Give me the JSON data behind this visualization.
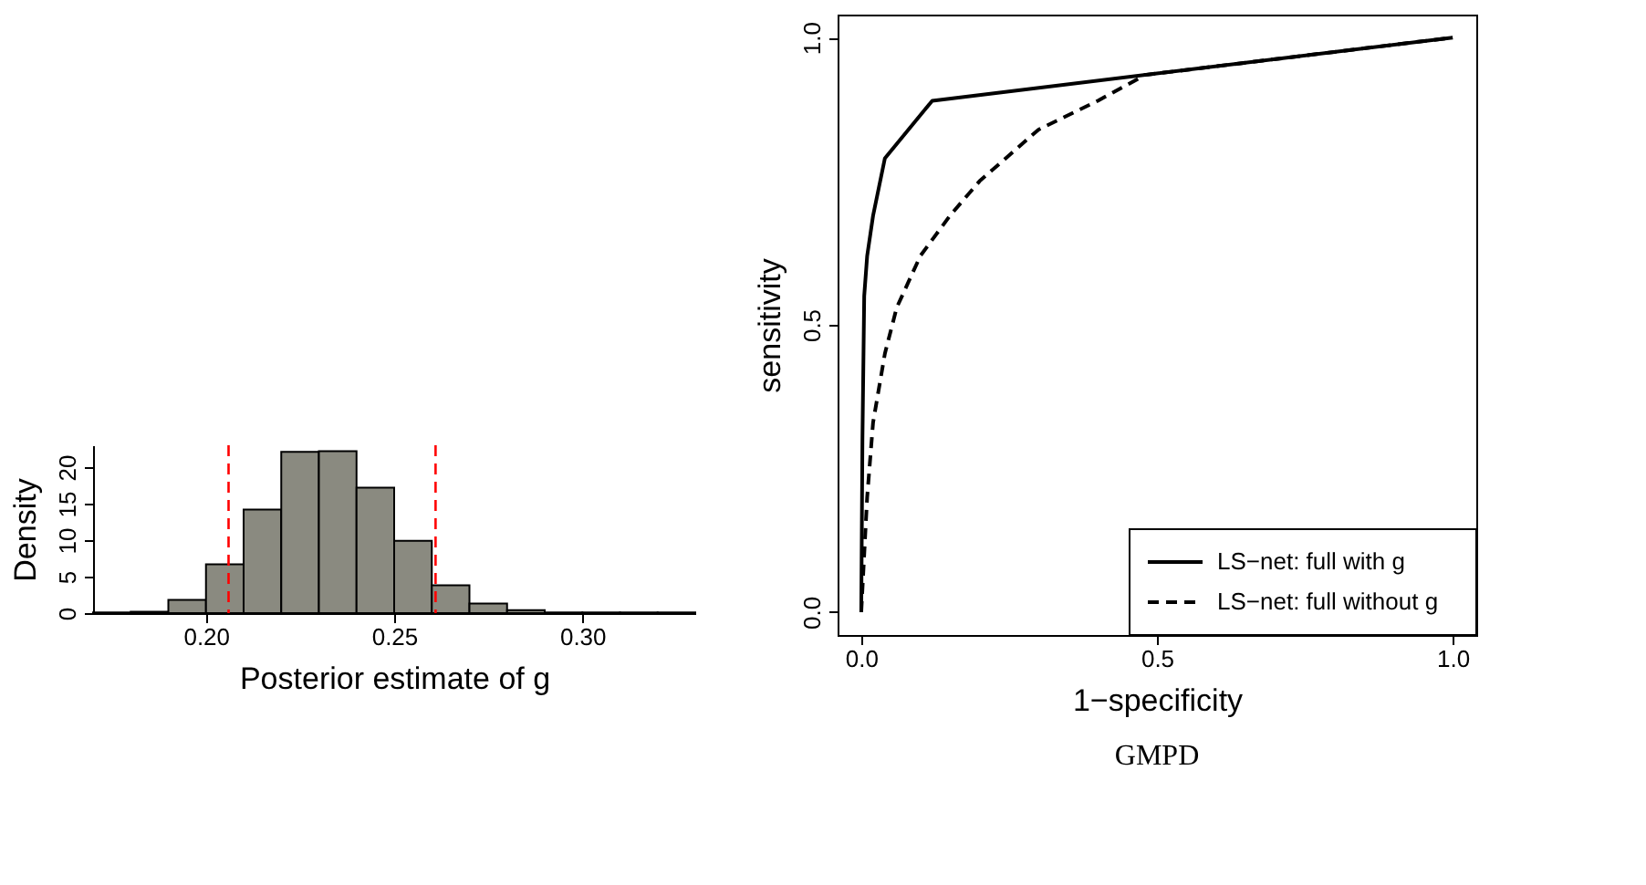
{
  "chart_data": [
    {
      "type": "histogram",
      "xlabel": "Posterior estimate of g",
      "ylabel": "Density",
      "color": "#8a8a80",
      "bins": [
        0.17,
        0.18,
        0.19,
        0.2,
        0.21,
        0.22,
        0.23,
        0.24,
        0.25,
        0.26,
        0.27,
        0.28,
        0.29,
        0.3,
        0.31,
        0.32,
        0.33
      ],
      "values": [
        0.1,
        0.2,
        1.8,
        6.7,
        14.2,
        22.1,
        22.2,
        17.2,
        9.9,
        3.8,
        1.3,
        0.4,
        0.1,
        0.1,
        0.1,
        0.1
      ],
      "xlim": [
        0.17,
        0.33
      ],
      "ylim": [
        0,
        23
      ],
      "xticks": [
        {
          "value": 0.2,
          "label": "0.20"
        },
        {
          "value": 0.25,
          "label": "0.25"
        },
        {
          "value": 0.3,
          "label": "0.30"
        }
      ],
      "yticks": [
        0,
        5,
        10,
        15,
        20
      ],
      "grid": false,
      "ref_lines": [
        {
          "axis": "x",
          "value": 0.206,
          "label": null,
          "color": "#ff0000",
          "line_style": "dashed"
        },
        {
          "axis": "x",
          "value": 0.261,
          "label": null,
          "color": "#ff0000",
          "line_style": "dashed"
        }
      ]
    },
    {
      "type": "line",
      "xlabel": "1−specificity",
      "ylabel": "sensitivity",
      "annotations": [
        "GMPD"
      ],
      "xlim": [
        -0.04,
        1.04
      ],
      "ylim": [
        -0.04,
        1.04
      ],
      "xticks": [
        {
          "value": 0,
          "label": "0.0"
        },
        {
          "value": 0.5,
          "label": "0.5"
        },
        {
          "value": 1,
          "label": "1.0"
        }
      ],
      "yticks": [
        {
          "value": 0,
          "label": "0.0"
        },
        {
          "value": 0.5,
          "label": "0.5"
        },
        {
          "value": 1,
          "label": "1.0"
        }
      ],
      "grid": false,
      "legend": "bottom right",
      "marker": "none",
      "series": [
        {
          "name": "LS−net:  full with g",
          "color": "#000000",
          "line_style": "solid",
          "x": [
            0,
            0.002,
            0.005,
            0.01,
            0.02,
            0.04,
            0.12,
            1
          ],
          "values": [
            0,
            0.3,
            0.55,
            0.62,
            0.69,
            0.79,
            0.89,
            1
          ]
        },
        {
          "name": "LS−net:  full without g",
          "color": "#000000",
          "line_style": "dashed",
          "x": [
            0,
            0.005,
            0.01,
            0.02,
            0.04,
            0.06,
            0.1,
            0.15,
            0.2,
            0.3,
            0.4,
            0.48,
            0.6,
            1
          ],
          "values": [
            0,
            0.1,
            0.2,
            0.33,
            0.45,
            0.53,
            0.62,
            0.69,
            0.75,
            0.84,
            0.89,
            0.935,
            0.95,
            1
          ]
        }
      ]
    }
  ]
}
